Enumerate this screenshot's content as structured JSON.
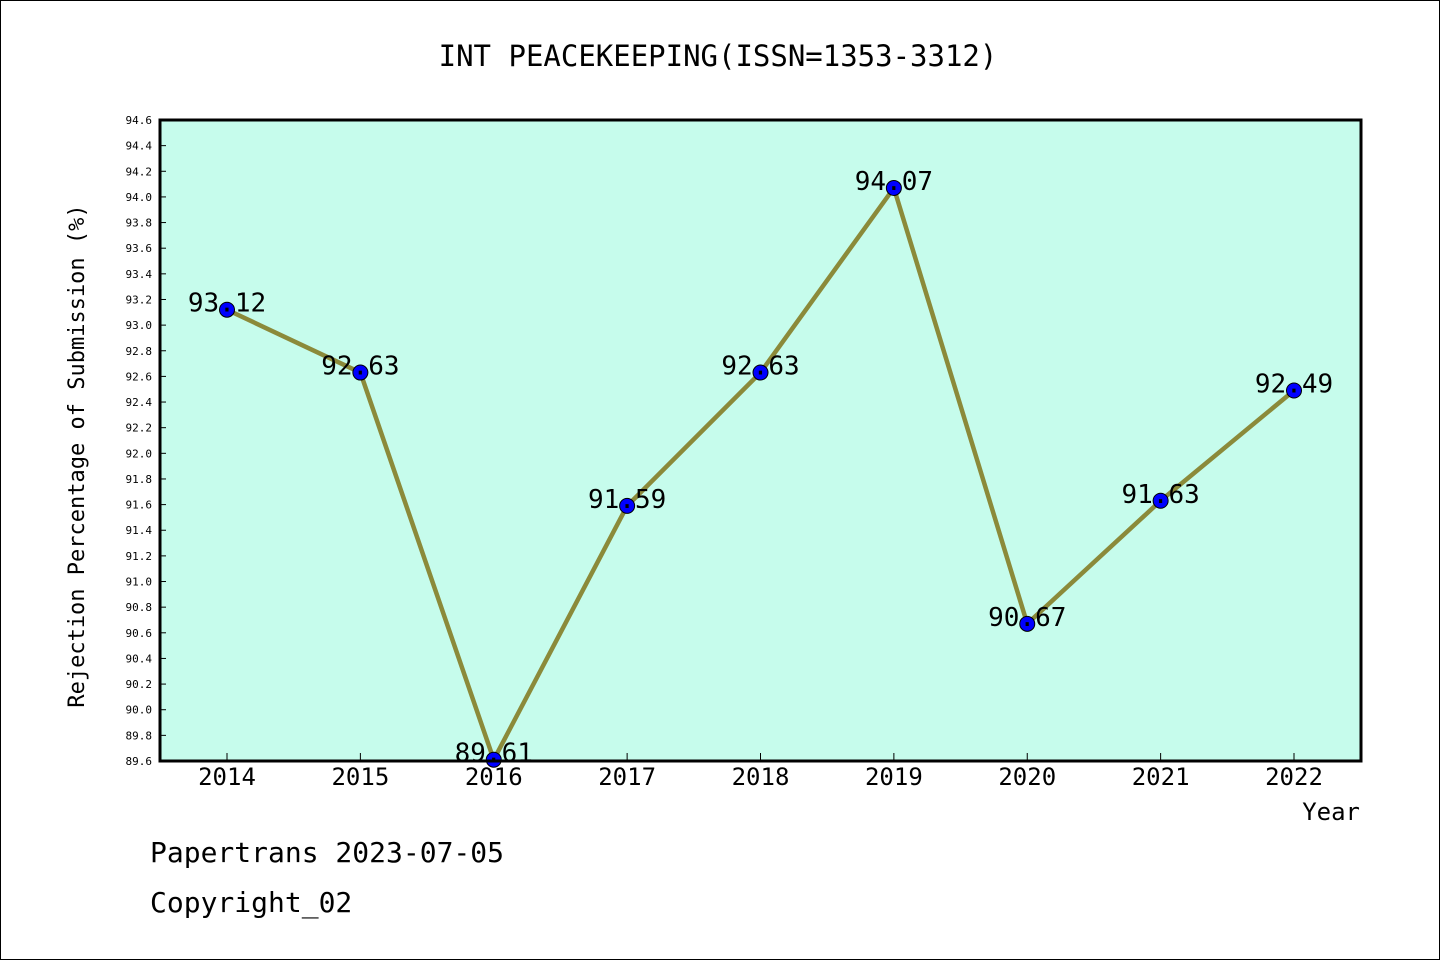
{
  "footer": {
    "line1": "Papertrans 2023-07-05",
    "line2": "Copyright_02"
  },
  "chart_data": {
    "type": "line",
    "title": "INT PEACEKEEPING(ISSN=1353-3312)",
    "xlabel": "Year",
    "ylabel": "Rejection Percentage of Submission (%)",
    "x": [
      "2014",
      "2015",
      "2016",
      "2017",
      "2018",
      "2019",
      "2020",
      "2021",
      "2022"
    ],
    "series": [
      {
        "values": [
          93.12,
          92.63,
          89.61,
          91.59,
          92.63,
          94.07,
          90.67,
          91.63,
          92.49
        ],
        "labels": [
          "93.12",
          "92.63",
          "89.61",
          "91.59",
          "92.63",
          "94.07",
          "90.67",
          "91.63",
          "92.49"
        ]
      }
    ],
    "ylim": [
      89.6,
      94.6
    ],
    "yticks": [
      "89.6",
      "89.8",
      "90.0",
      "90.2",
      "90.4",
      "90.6",
      "90.8",
      "91.0",
      "91.2",
      "91.4",
      "91.6",
      "91.8",
      "92.0",
      "92.2",
      "92.4",
      "92.6",
      "92.8",
      "93.0",
      "93.2",
      "93.4",
      "93.6",
      "93.8",
      "94.0",
      "94.2",
      "94.4",
      "94.6"
    ],
    "grid": false,
    "legend": "none",
    "colors": {
      "plot_background": "#c6fcec",
      "line": "#8b8a3a",
      "marker": "#0000ff",
      "frame": "#000000"
    }
  }
}
